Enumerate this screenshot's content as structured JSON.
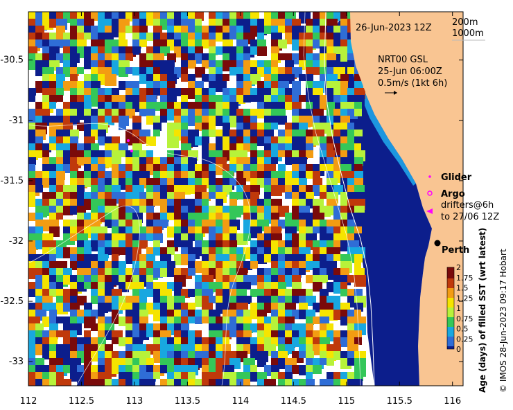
{
  "map": {
    "date_label": "26-Jun-2023 12Z",
    "contour_legend": [
      "200m",
      "1000m"
    ],
    "current_label": [
      "NRT00 GSL",
      "25-Jun 06:00Z",
      "0.5m/s (1kt 6h)"
    ],
    "city_label": "Perth",
    "credit": "© IMOS 28-Jun-2023 09:17 Hobart",
    "legend": {
      "glider": "Glider",
      "argo": "Argo",
      "drifters": [
        "drifters@6h",
        "to 27/06 12Z"
      ]
    },
    "colorbar": {
      "title": "Age (days) of filled SST (wrt latest)",
      "ticks": [
        "2",
        "1.75",
        "1.5",
        "1.25",
        "1",
        "0.75",
        "0.5",
        "0.25",
        "0"
      ]
    },
    "x_ticks": [
      "112",
      "112.5",
      "113",
      "113.5",
      "114",
      "114.5",
      "115",
      "115.5",
      "116"
    ],
    "y_ticks": [
      "-30.5",
      "-31",
      "-31.5",
      "-32",
      "-32.5",
      "-33"
    ],
    "x_range": [
      112,
      116.1
    ],
    "y_range": [
      -33.2,
      -30.1
    ],
    "colors": {
      "land": "#F9C592",
      "sea_deep": "#0C1E8C",
      "glider": "#FF00FF",
      "argo": "#FF00FF",
      "drifter": "#FF00FF"
    }
  }
}
